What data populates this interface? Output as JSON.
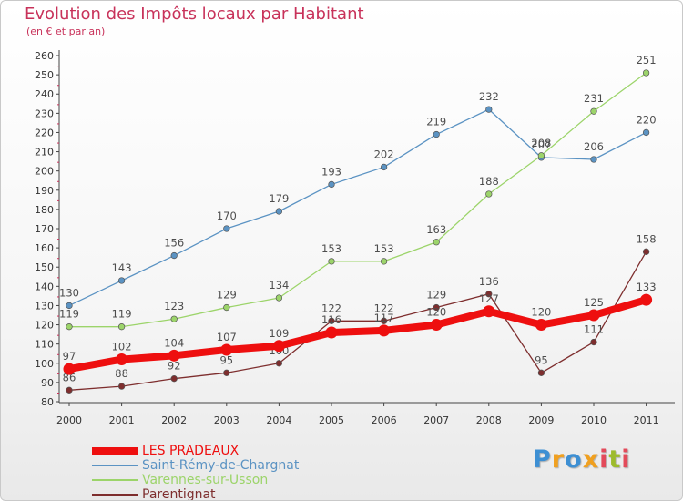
{
  "title": "Evolution des Impôts locaux par Habitant",
  "subtitle": "(en € et par an)",
  "logo": {
    "p": "P",
    "r": "r",
    "o": "o",
    "x": "x",
    "i": "i",
    "t": "t",
    "i2": "i"
  },
  "chart_data": {
    "type": "line",
    "title": "Evolution des Impôts locaux par Habitant",
    "subtitle": "(en € et par an)",
    "x": [
      "2000",
      "2001",
      "2002",
      "2003",
      "2004",
      "2005",
      "2006",
      "2007",
      "2008",
      "2009",
      "2010",
      "2011"
    ],
    "ylim": [
      80,
      260
    ],
    "ytick_step": 10,
    "grid": false,
    "legend_position": "bottom-left",
    "series": [
      {
        "name": "Saint-Rémy-de-Chargnat",
        "color": "#5b93c3",
        "values": [
          130,
          143,
          156,
          170,
          179,
          193,
          202,
          219,
          232,
          207,
          206,
          220
        ]
      },
      {
        "name": "Varennes-sur-Usson",
        "color": "#9cd46a",
        "values": [
          119,
          119,
          123,
          129,
          134,
          153,
          153,
          163,
          188,
          208,
          231,
          251
        ]
      },
      {
        "name": "Parentignat",
        "color": "#7e2e2e",
        "values": [
          86,
          88,
          92,
          95,
          100,
          122,
          122,
          129,
          136,
          95,
          111,
          158
        ]
      },
      {
        "name": "LES PRADEAUX",
        "color": "#ee0f0f",
        "values": [
          97,
          102,
          104,
          107,
          109,
          116,
          117,
          120,
          127,
          120,
          125,
          133
        ]
      }
    ],
    "legend_order": [
      "LES PRADEAUX",
      "Saint-Rémy-de-Chargnat",
      "Varennes-sur-Usson",
      "Parentignat"
    ]
  }
}
